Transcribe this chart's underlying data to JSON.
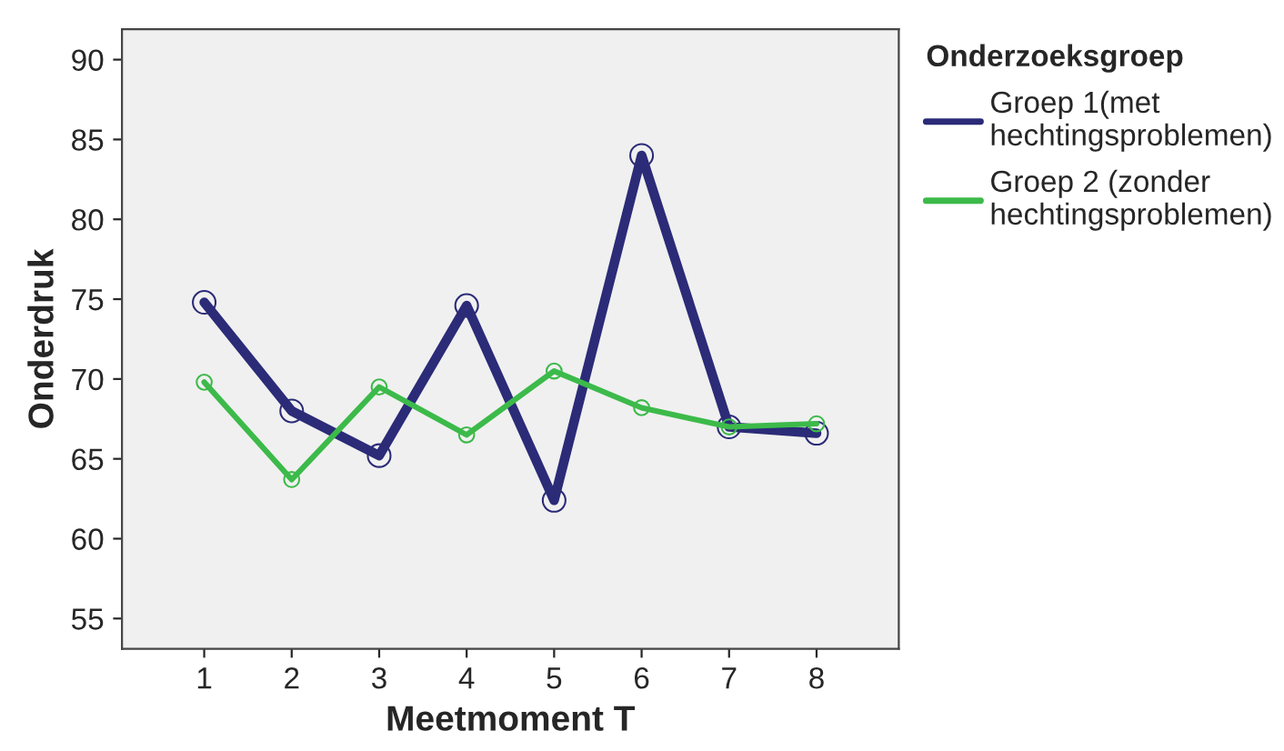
{
  "chart_data": {
    "type": "line",
    "xlabel": "Meetmoment T",
    "ylabel": "Onderdruk",
    "legend_title": "Onderzoeksgroep",
    "categories": [
      "1",
      "2",
      "3",
      "4",
      "5",
      "6",
      "7",
      "8"
    ],
    "series": [
      {
        "name": "Groep 1(met\nhechtingsproblemen)",
        "color": "#2b2b78",
        "values": [
          74.8,
          68,
          65.2,
          74.6,
          62.4,
          84,
          67,
          66.6
        ]
      },
      {
        "name": "Groep 2 (zonder\nhechtingsproblemen)",
        "color": "#3cba4a",
        "values": [
          69.8,
          63.7,
          69.5,
          66.5,
          70.5,
          68.2,
          67,
          67.2
        ]
      }
    ],
    "ylim": [
      53.1,
      91.9
    ],
    "yticks": [
      55,
      60,
      65,
      70,
      75,
      80,
      85,
      90
    ],
    "grid": false,
    "legend": "right",
    "marker": "circle",
    "line_style": "solid"
  }
}
